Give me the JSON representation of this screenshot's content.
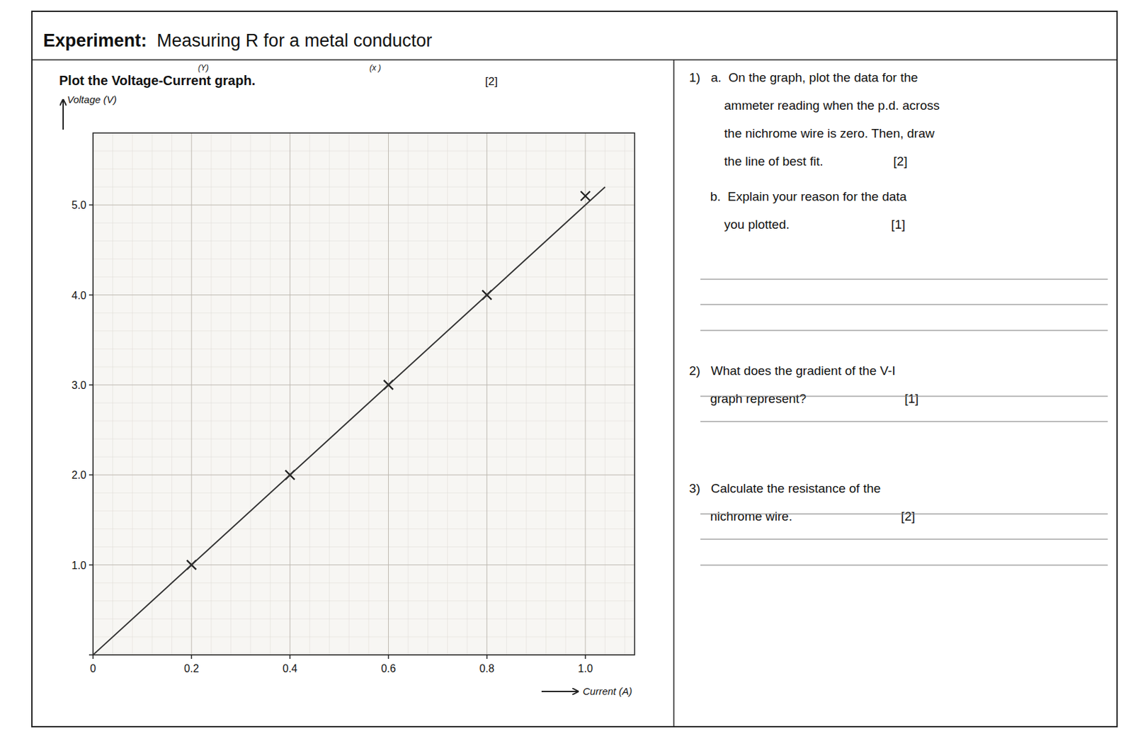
{
  "chart_data": {
    "type": "scatter",
    "title": "Experiment:",
    "subtitle": "  Measuring R for a metal conductor",
    "annotations": [
      "Plot the Voltage-Current graph.",
      "[2]",
      "(Y)",
      "(x )"
    ],
    "y_label": "Voltage (V)",
    "x_label": "Current (A)",
    "xlim": [
      0,
      1.1
    ],
    "ylim": [
      0,
      5.8
    ],
    "xticks": [
      0,
      0.2,
      0.4,
      0.6,
      0.8,
      {
        "value": 1.0,
        "label": "1.0"
      }
    ],
    "yticks": [
      {
        "value": 0,
        "label": null
      },
      {
        "value": 1.0,
        "label": "1.0"
      },
      {
        "value": 2.0,
        "label": "2.0"
      },
      {
        "value": 3.0,
        "label": "3.0"
      },
      {
        "value": 4.0,
        "label": "4.0"
      },
      {
        "value": 5.0,
        "label": "5.0"
      }
    ],
    "grid": true,
    "series": [
      {
        "type": "scatter",
        "marker": "x",
        "color": "#222222",
        "x": [
          0.2,
          0.4,
          0.6,
          0.8,
          1.0
        ],
        "values": [
          1.0,
          2.0,
          3.0,
          4.0,
          5.1
        ]
      },
      {
        "type": "line",
        "line_style": "solid",
        "color": "#333333",
        "x": [
          0.0,
          1.04
        ],
        "values": [
          0.0,
          5.2
        ]
      }
    ],
    "questions": [
      [
        "1)   a.  On the graph, plot the data for the",
        "          ammeter reading when the p.d. across",
        "          the nichrome wire is zero. Then, draw",
        "          the line of best fit.                    [2]"
      ],
      [
        "      b.  Explain your reason for the data",
        "          you plotted.                             [1]"
      ],
      [
        "2)   What does the gradient of the V-I",
        "      graph represent?                            [1]"
      ],
      [
        "3)   Calculate the resistance of the",
        "      nichrome wire.                               [2]"
      ]
    ]
  }
}
